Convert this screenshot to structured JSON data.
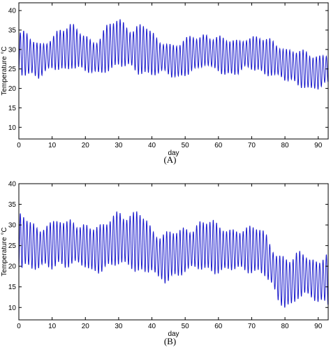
{
  "chart_data": [
    {
      "type": "line",
      "caption": "(A)",
      "xlabel": "day",
      "ylabel": "Temperature °C",
      "xlim": [
        0,
        93
      ],
      "ylim": [
        7,
        42
      ],
      "xticks": [
        0,
        10,
        20,
        30,
        40,
        50,
        60,
        70,
        80,
        90
      ],
      "yticks": [
        10,
        15,
        20,
        25,
        30,
        35,
        40
      ],
      "grid": false,
      "color": "#1a1acc",
      "series": [
        {
          "x": [
            0,
            2,
            4,
            6,
            8,
            10,
            12,
            14,
            16,
            18,
            20,
            22,
            24,
            26,
            28,
            30,
            32,
            34,
            36,
            38,
            40,
            42,
            44,
            46,
            48,
            50,
            52,
            54,
            56,
            58,
            60,
            62,
            64,
            66,
            68,
            70,
            72,
            74,
            76,
            78,
            80,
            82,
            84,
            86,
            88,
            90,
            92,
            93
          ],
          "mean": [
            29,
            29,
            28,
            27,
            28,
            29,
            30,
            30,
            31,
            30,
            29,
            28,
            28,
            30,
            31,
            32,
            31,
            30,
            30,
            30,
            29,
            28,
            28,
            27,
            27,
            28,
            29,
            29,
            30,
            29,
            29,
            28,
            28,
            28,
            29,
            29,
            29,
            28,
            28,
            27,
            26,
            26,
            25,
            25,
            24,
            24,
            25,
            25
          ],
          "amplitude": [
            6,
            6,
            5,
            5,
            5,
            5,
            6,
            6,
            6,
            6,
            6,
            5,
            5,
            6,
            7,
            7,
            7,
            6,
            7,
            7,
            6,
            5,
            5,
            5,
            5,
            5,
            5,
            5,
            5,
            5,
            5,
            5,
            5,
            5,
            5,
            5,
            5,
            5,
            5,
            5,
            5,
            5,
            5,
            5,
            5,
            5,
            5,
            5
          ]
        }
      ]
    },
    {
      "type": "line",
      "caption": "(B)",
      "xlabel": "day",
      "ylabel": "Temperature °C",
      "xlim": [
        0,
        93
      ],
      "ylim": [
        7,
        40
      ],
      "xticks": [
        0,
        10,
        20,
        30,
        40,
        50,
        60,
        70,
        80,
        90
      ],
      "yticks": [
        10,
        15,
        20,
        25,
        30,
        35,
        40
      ],
      "grid": false,
      "color": "#1a1acc",
      "series": [
        {
          "x": [
            0,
            2,
            4,
            6,
            8,
            10,
            12,
            14,
            16,
            18,
            20,
            22,
            24,
            26,
            28,
            30,
            32,
            34,
            36,
            38,
            40,
            42,
            44,
            46,
            48,
            50,
            52,
            54,
            56,
            58,
            60,
            62,
            64,
            66,
            68,
            70,
            72,
            74,
            76,
            78,
            80,
            82,
            84,
            86,
            88,
            90,
            92,
            93
          ],
          "mean": [
            26,
            26,
            25,
            24,
            25,
            25,
            26,
            25,
            26,
            25,
            25,
            24,
            24,
            25,
            26,
            27,
            26,
            26,
            26,
            25,
            24,
            22,
            22,
            23,
            23,
            24,
            24,
            25,
            25,
            25,
            24,
            24,
            24,
            24,
            24,
            24,
            24,
            23,
            20,
            17,
            16,
            16,
            18,
            18,
            17,
            16,
            17,
            17
          ],
          "amplitude": [
            7,
            7,
            7,
            6,
            6,
            6,
            6,
            6,
            7,
            6,
            6,
            6,
            6,
            6,
            8,
            8,
            7,
            7,
            8,
            8,
            6,
            7,
            7,
            6,
            6,
            6,
            6,
            7,
            7,
            7,
            6,
            6,
            6,
            6,
            6,
            6,
            6,
            6,
            6,
            7,
            7,
            6,
            6,
            6,
            6,
            6,
            7,
            7
          ]
        }
      ]
    }
  ]
}
